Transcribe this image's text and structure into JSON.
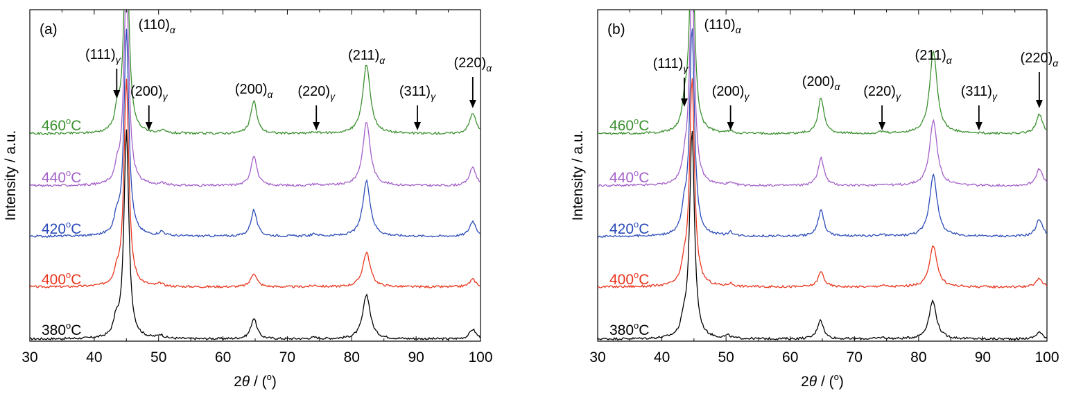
{
  "chart_data": [
    {
      "type": "line",
      "panel_label": "(a)",
      "ylabel": "Intensity / a.u.",
      "xlabel": {
        "prefix": "2",
        "theta": "θ",
        "suffix": " / (",
        "unit_sup": "o",
        "close": ")"
      },
      "xlim": [
        30,
        100
      ],
      "xticks": [
        "30",
        "40",
        "50",
        "60",
        "70",
        "80",
        "90",
        "100"
      ],
      "series": [
        {
          "label": {
            "value": "380",
            "sup": "o",
            "unit": "C"
          },
          "color": "#000000",
          "peaks": [
            [
              43.4,
              22
            ],
            [
              45.0,
              300
            ],
            [
              50.3,
              5
            ],
            [
              64.8,
              30
            ],
            [
              74.2,
              2
            ],
            [
              82.3,
              64
            ],
            [
              98.8,
              14
            ]
          ]
        },
        {
          "label": {
            "value": "400",
            "sup": "o",
            "unit": "C"
          },
          "color": "#e8341c",
          "peaks": [
            [
              43.5,
              16
            ],
            [
              45.0,
              300
            ],
            [
              50.3,
              4
            ],
            [
              64.8,
              20
            ],
            [
              74.3,
              2
            ],
            [
              82.3,
              50
            ],
            [
              98.8,
              11
            ]
          ]
        },
        {
          "label": {
            "value": "420",
            "sup": "o",
            "unit": "C"
          },
          "color": "#2a4ab8",
          "peaks": [
            [
              43.5,
              22
            ],
            [
              45.0,
              300
            ],
            [
              50.5,
              6
            ],
            [
              64.8,
              38
            ],
            [
              74.3,
              3
            ],
            [
              82.3,
              80
            ],
            [
              98.8,
              22
            ]
          ]
        },
        {
          "label": {
            "value": "440",
            "sup": "o",
            "unit": "C"
          },
          "color": "#a35fc9",
          "peaks": [
            [
              43.6,
              20
            ],
            [
              45.0,
              300
            ],
            [
              50.6,
              3
            ],
            [
              64.8,
              44
            ],
            [
              74.3,
              2
            ],
            [
              82.3,
              92
            ],
            [
              98.8,
              27
            ]
          ]
        },
        {
          "label": {
            "value": "460",
            "sup": "o",
            "unit": "C"
          },
          "color": "#3a8f2e",
          "peaks": [
            [
              43.6,
              28
            ],
            [
              45.0,
              300
            ],
            [
              50.7,
              3
            ],
            [
              64.8,
              48
            ],
            [
              74.3,
              2
            ],
            [
              82.3,
              100
            ],
            [
              98.8,
              30
            ]
          ]
        }
      ],
      "annotations": [
        {
          "text": "(111)",
          "sub": "γ",
          "x": 43.5,
          "arrow": true
        },
        {
          "text": "(110)",
          "sub": "α",
          "x": 45.0,
          "arrow": false
        },
        {
          "text": "(200)",
          "sub": "γ",
          "x": 48.5,
          "arrow": true
        },
        {
          "text": "(200)",
          "sub": "α",
          "x": 64.8,
          "arrow": false
        },
        {
          "text": "(220)",
          "sub": "γ",
          "x": 74.5,
          "arrow": true
        },
        {
          "text": "(211)",
          "sub": "α",
          "x": 82.3,
          "arrow": false
        },
        {
          "text": "(311)",
          "sub": "γ",
          "x": 90.2,
          "arrow": true
        },
        {
          "text": "(220)",
          "sub": "α",
          "x": 98.8,
          "arrow": true
        }
      ]
    },
    {
      "type": "line",
      "panel_label": "(b)",
      "ylabel": "Intensity / a.u.",
      "xlabel": {
        "prefix": "2",
        "theta": "θ",
        "suffix": " / (",
        "unit_sup": "o",
        "close": ")"
      },
      "xlim": [
        30,
        100
      ],
      "xticks": [
        "30",
        "40",
        "50",
        "60",
        "70",
        "80",
        "90",
        "100"
      ],
      "series": [
        {
          "label": {
            "value": "380",
            "sup": "o",
            "unit": "C"
          },
          "color": "#000000",
          "peaks": [
            [
              43.4,
              20
            ],
            [
              44.7,
              300
            ],
            [
              50.3,
              4
            ],
            [
              64.7,
              28
            ],
            [
              74.3,
              2
            ],
            [
              82.2,
              55
            ],
            [
              98.8,
              10
            ]
          ]
        },
        {
          "label": {
            "value": "400",
            "sup": "o",
            "unit": "C"
          },
          "color": "#e8341c",
          "peaks": [
            [
              43.5,
              24
            ],
            [
              44.7,
              300
            ],
            [
              50.7,
              4
            ],
            [
              64.8,
              22
            ],
            [
              74.3,
              2
            ],
            [
              82.3,
              60
            ],
            [
              98.8,
              12
            ]
          ]
        },
        {
          "label": {
            "value": "420",
            "sup": "o",
            "unit": "C"
          },
          "color": "#2a4ab8",
          "peaks": [
            [
              43.5,
              30
            ],
            [
              44.7,
              300
            ],
            [
              50.7,
              5
            ],
            [
              64.8,
              38
            ],
            [
              74.3,
              2
            ],
            [
              82.3,
              90
            ],
            [
              98.8,
              25
            ]
          ]
        },
        {
          "label": {
            "value": "440",
            "sup": "o",
            "unit": "C"
          },
          "color": "#a35fc9",
          "peaks": [
            [
              43.6,
              26
            ],
            [
              44.7,
              300
            ],
            [
              50.7,
              3
            ],
            [
              64.8,
              40
            ],
            [
              74.3,
              2
            ],
            [
              82.3,
              95
            ],
            [
              98.8,
              25
            ]
          ]
        },
        {
          "label": {
            "value": "460",
            "sup": "o",
            "unit": "C"
          },
          "color": "#3a8f2e",
          "peaks": [
            [
              43.6,
              32
            ],
            [
              44.7,
              300
            ],
            [
              50.7,
              3
            ],
            [
              64.8,
              52
            ],
            [
              74.3,
              2
            ],
            [
              82.3,
              120
            ],
            [
              98.8,
              28
            ]
          ]
        }
      ],
      "annotations": [
        {
          "text": "(111)",
          "sub": "γ",
          "x": 43.5,
          "arrow": true
        },
        {
          "text": "(110)",
          "sub": "α",
          "x": 44.7,
          "arrow": false
        },
        {
          "text": "(200)",
          "sub": "γ",
          "x": 50.7,
          "arrow": true
        },
        {
          "text": "(200)",
          "sub": "α",
          "x": 64.8,
          "arrow": false
        },
        {
          "text": "(220)",
          "sub": "γ",
          "x": 74.3,
          "arrow": true
        },
        {
          "text": "(211)",
          "sub": "α",
          "x": 82.3,
          "arrow": false
        },
        {
          "text": "(311)",
          "sub": "γ",
          "x": 89.4,
          "arrow": true
        },
        {
          "text": "(220)",
          "sub": "α",
          "x": 98.8,
          "arrow": true
        }
      ]
    }
  ]
}
